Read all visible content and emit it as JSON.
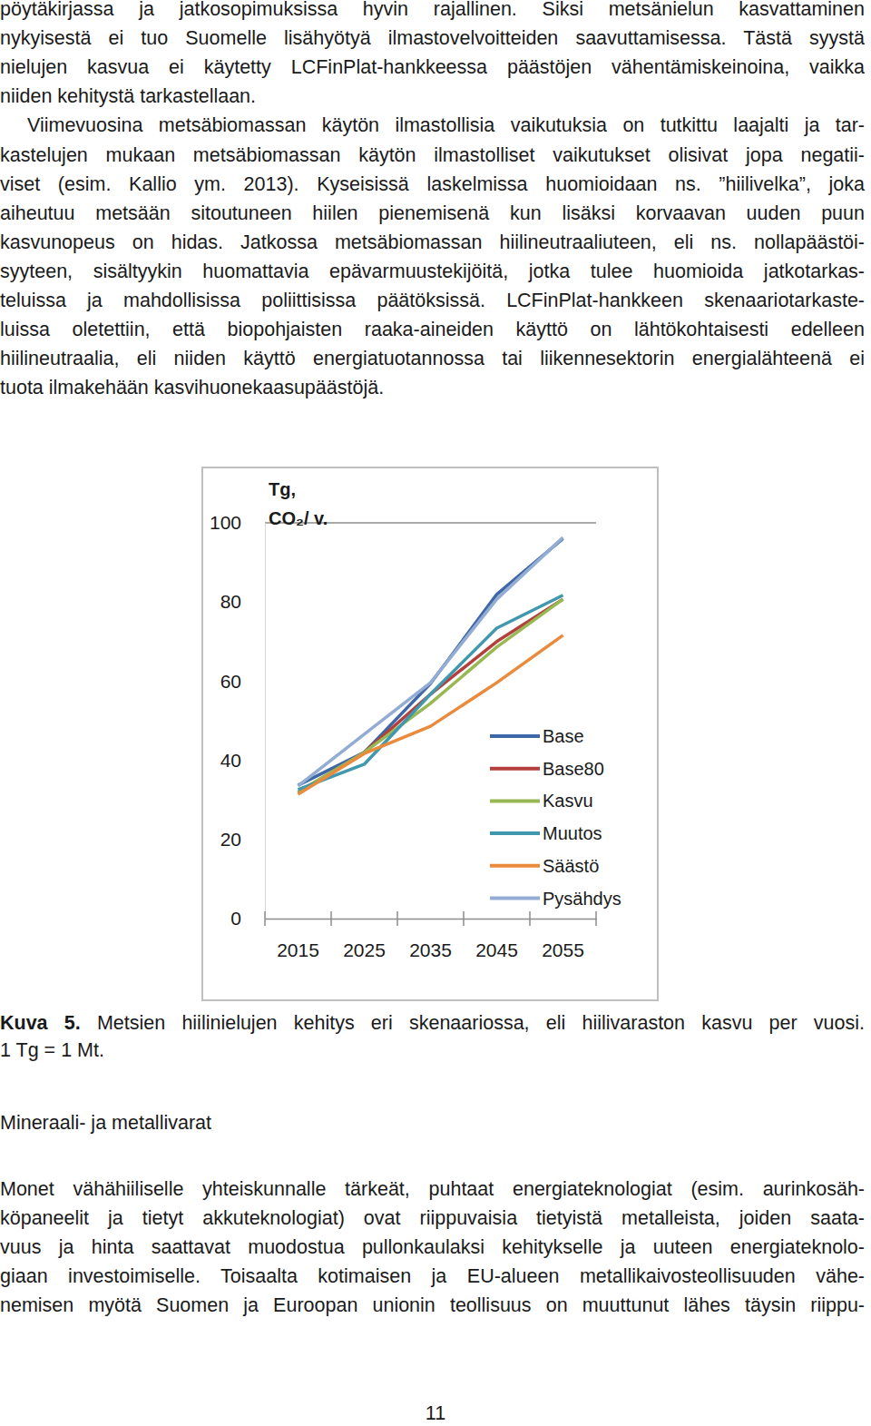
{
  "paragraphs": [
    {
      "lines": [
        "pöytäkirjassa ja jatkosopimuksissa hyvin rajallinen. Siksi metsänielun kasvattaminen",
        "nykyisestä ei tuo Suomelle lisähyötyä ilmastovelvoitteiden saavuttamisessa. Tästä syystä",
        "nielujen kasvua ei käytetty LCFinPlat-hankkeessa päästöjen vähentämiskeinoina, vaikka",
        "niiden kehitystä tarkastellaan."
      ]
    },
    {
      "lines": [
        "Viimevuosina metsäbiomassan käytön ilmastollisia vaikutuksia on tutkittu laajalti ja tar-",
        "kastelujen mukaan metsäbiomassan käytön ilmastolliset vaikutukset olisivat jopa negatii-",
        "viset (esim. Kallio ym. 2013). Kyseisissä laskelmissa huomioidaan ns. ”hiilivelka”, joka",
        "aiheutuu metsään sitoutuneen hiilen pienemisenä kun lisäksi korvaavan uuden puun",
        "kasvunopeus on hidas. Jatkossa metsäbiomassan hiilineutraaliuteen, eli ns. nollapäästöi-",
        "syyteen, sisältyykin huomattavia epävarmuustekijöitä, jotka tulee huomioida jatkotarkas-",
        "teluissa ja mahdollisissa poliittisissa päätöksissä. LCFinPlat-hankkeen skenaariotarkaste-",
        "luissa oletettiin, että biopohjaisten raaka-aineiden käyttö on lähtökohtaisesti edelleen",
        "hiilineutraalia, eli niiden käyttö energiatuotannossa tai liikennesektorin energialähteenä ei",
        "tuota ilmakehään kasvihuonekaasupäästöjä."
      ]
    }
  ],
  "chart_data": {
    "type": "line",
    "y_label": [
      "Tg,",
      "CO₂/ v."
    ],
    "categories": [
      "2015",
      "2025",
      "2035",
      "2045",
      "2055"
    ],
    "series": [
      {
        "name": "Base",
        "color": "#3d67a6",
        "values": [
          33.7,
          42.0,
          59.4,
          81.9,
          96.0
        ]
      },
      {
        "name": "Base80",
        "color": "#b3403d",
        "values": [
          31.9,
          42.0,
          56.7,
          70.0,
          80.7
        ]
      },
      {
        "name": "Kasvu",
        "color": "#97b853",
        "values": [
          32.0,
          42.0,
          54.4,
          68.6,
          80.7
        ]
      },
      {
        "name": "Muutos",
        "color": "#3f98ad",
        "values": [
          32.6,
          39.0,
          56.7,
          73.4,
          81.7
        ]
      },
      {
        "name": "Säästö",
        "color": "#e98a3c",
        "values": [
          31.4,
          41.7,
          48.6,
          59.6,
          71.6
        ]
      },
      {
        "name": "Pysähdys",
        "color": "#93acd3",
        "values": [
          33.5,
          46.6,
          59.6,
          80.7,
          96.3
        ]
      }
    ],
    "ylim": [
      0,
      100
    ],
    "yticks": [
      0,
      20,
      40,
      60,
      80,
      100
    ],
    "legend": "lower right"
  },
  "caption": {
    "label": "Kuva 5.",
    "text": "Metsien hiilinielujen kehitys eri skenaariossa, eli hiilivaraston kasvu per vuosi.",
    "note": "1 Tg = 1 Mt."
  },
  "heading": "Mineraali- ja metallivarat",
  "paragraphs_after": [
    {
      "lines": [
        "Monet vähähiiliselle yhteiskunnalle tärkeät, puhtaat energiateknologiat (esim. aurinkosäh-",
        "köpaneelit ja tietyt akkuteknologiat) ovat riippuvaisia tietyistä metalleista, joiden saata-",
        "vuus ja hinta saattavat muodostua pullonkaulaksi kehitykselle ja uuteen energiateknolo-",
        "giaan investoimiselle. Toisaalta kotimaisen ja EU-alueen metallikaivosteollisuuden vähe-",
        "nemisen myötä Suomen ja Euroopan unionin teollisuus on muuttunut lähes täysin riippu-"
      ]
    }
  ],
  "page_number": "11"
}
